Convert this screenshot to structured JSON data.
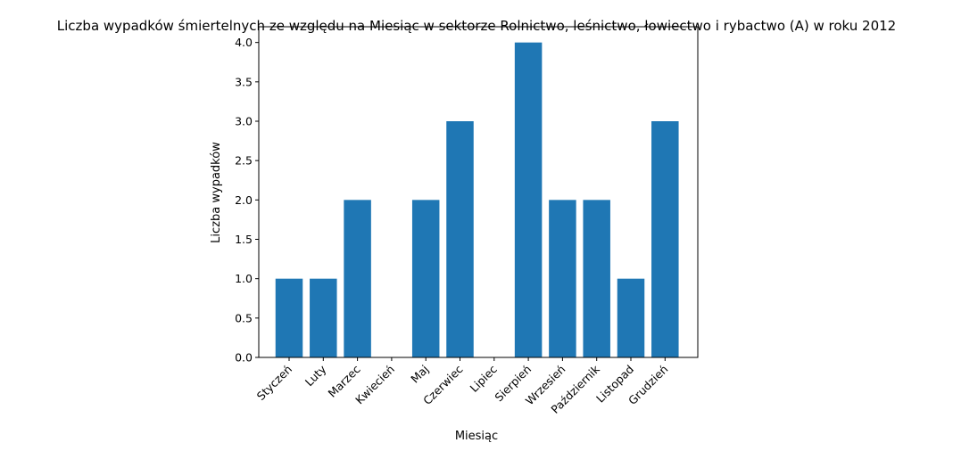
{
  "chart_data": {
    "type": "bar",
    "title": "Liczba wypadków śmiertelnych ze względu na Miesiąc w sektorze Rolnictwo, leśnictwo, łowiectwo i rybactwo (A) w roku 2012",
    "xlabel": "Miesiąc",
    "ylabel": "Liczba wypadków",
    "categories": [
      "Styczeń",
      "Luty",
      "Marzec",
      "Kwiecień",
      "Maj",
      "Czerwiec",
      "Lipiec",
      "Sierpień",
      "Wrzesień",
      "Październik",
      "Listopad",
      "Grudzień"
    ],
    "values": [
      1,
      1,
      2,
      0,
      2,
      3,
      0,
      4,
      2,
      2,
      1,
      3
    ],
    "ylim": [
      0,
      4.2
    ],
    "yticks": [
      "0.0",
      "0.5",
      "1.0",
      "1.5",
      "2.0",
      "2.5",
      "3.0",
      "3.5",
      "4.0"
    ],
    "bar_color": "#1f77b4",
    "grid": false,
    "legend": "none"
  }
}
